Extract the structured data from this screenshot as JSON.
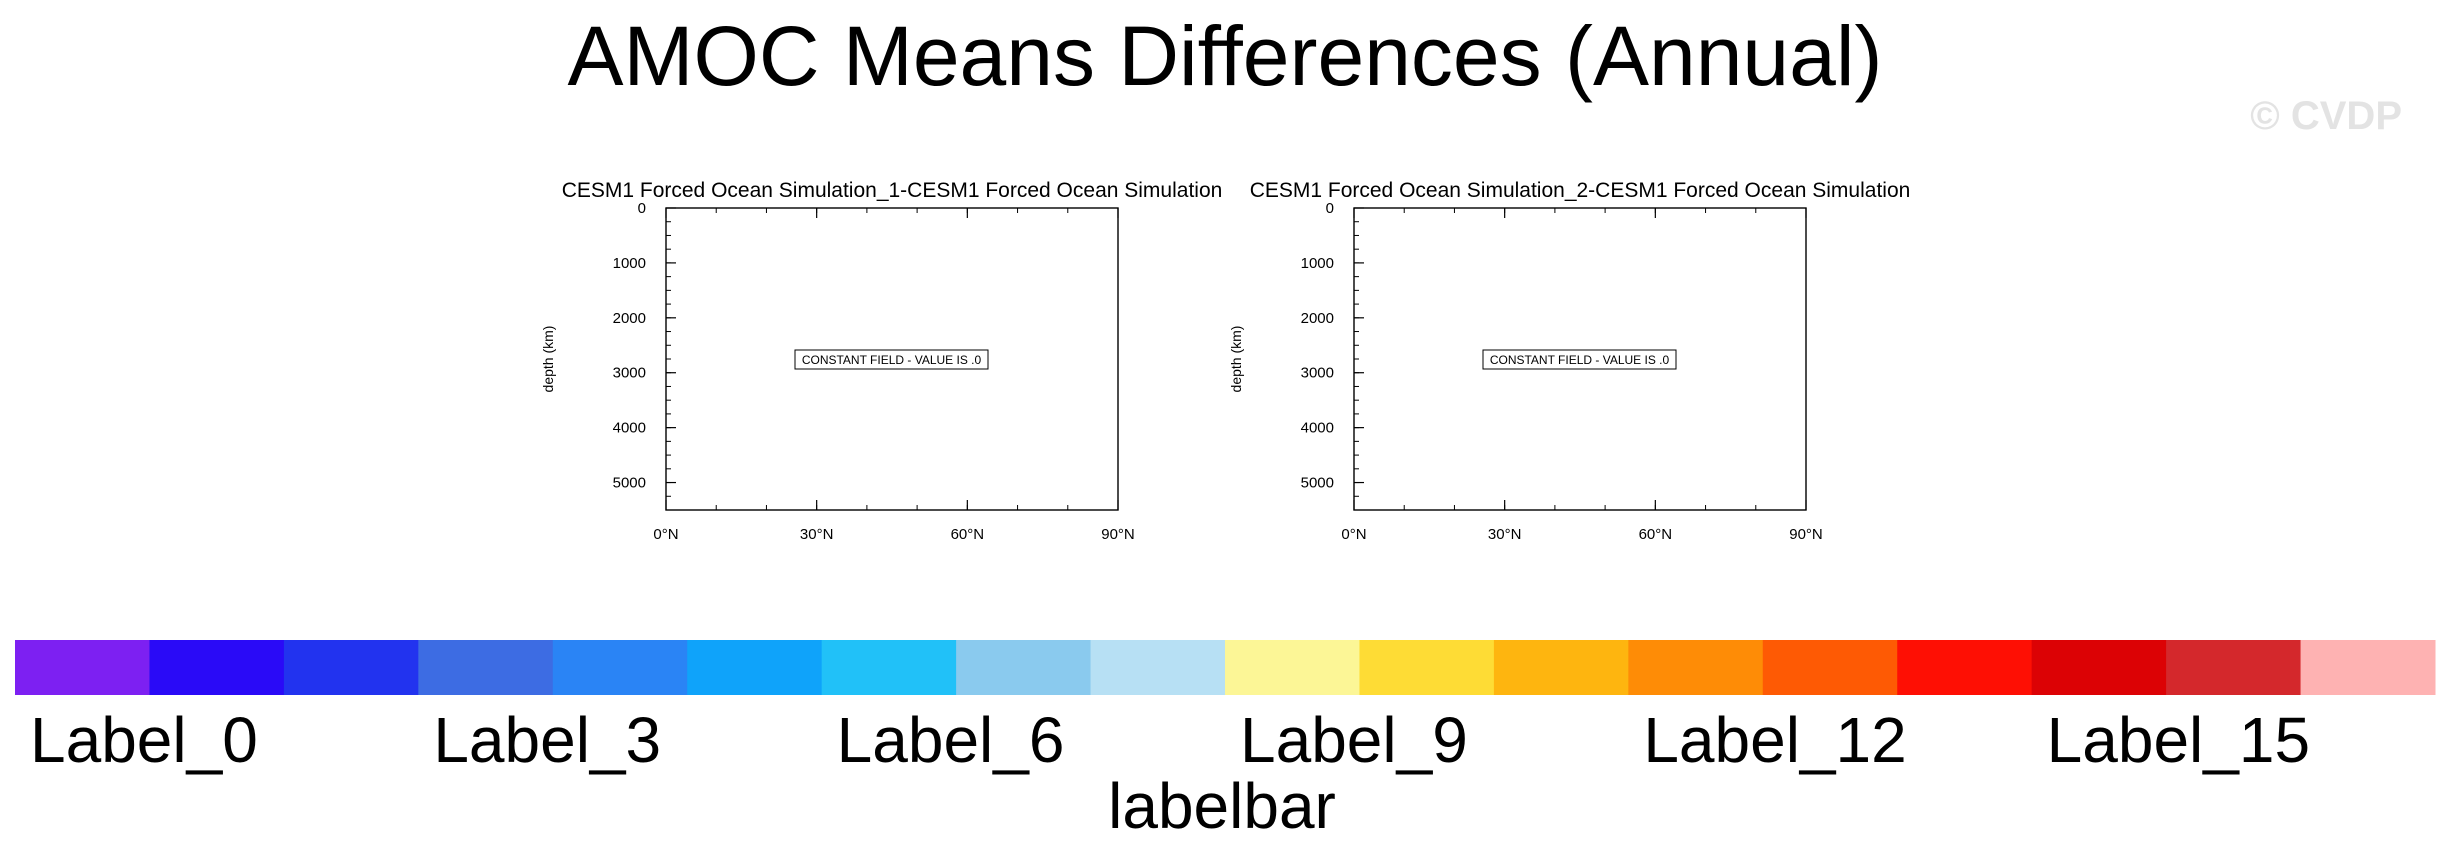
{
  "title": "AMOC Means Differences (Annual)",
  "watermark": "© CVDP",
  "chart_data": [
    {
      "type": "contour",
      "title": "CESM1 Forced Ocean Simulation_1-CESM1 Forced Ocean Simulation",
      "ylabel": "depth (km)",
      "xlabel": "",
      "x_ticks": [
        "0°N",
        "30°N",
        "60°N",
        "90°N"
      ],
      "x_values": [
        0,
        30,
        60,
        90
      ],
      "xlim": [
        0,
        90
      ],
      "y_ticks": [
        "0",
        "1000",
        "2000",
        "3000",
        "4000",
        "5000"
      ],
      "y_values": [
        0,
        1000,
        2000,
        3000,
        4000,
        5000
      ],
      "ylim": [
        5500,
        0
      ],
      "annotation": "CONSTANT FIELD - VALUE IS .0",
      "value": 0
    },
    {
      "type": "contour",
      "title": "CESM1 Forced Ocean Simulation_2-CESM1 Forced Ocean Simulation",
      "ylabel": "depth (km)",
      "xlabel": "",
      "x_ticks": [
        "0°N",
        "30°N",
        "60°N",
        "90°N"
      ],
      "x_values": [
        0,
        30,
        60,
        90
      ],
      "xlim": [
        0,
        90
      ],
      "y_ticks": [
        "0",
        "1000",
        "2000",
        "3000",
        "4000",
        "5000"
      ],
      "y_values": [
        0,
        1000,
        2000,
        3000,
        4000,
        5000
      ],
      "ylim": [
        5500,
        0
      ],
      "annotation": "CONSTANT FIELD - VALUE IS .0",
      "value": 0
    }
  ],
  "labelbar": {
    "title": "labelbar",
    "colors": [
      "#7d20f2",
      "#2a0af7",
      "#2233ef",
      "#3d6ce3",
      "#2a84f5",
      "#0fa3fa",
      "#21c1f8",
      "#8acaee",
      "#b7e0f4",
      "#fcf696",
      "#fedc35",
      "#feb50f",
      "#fe8c06",
      "#fe5a04",
      "#fe0f04",
      "#dc0205",
      "#d4282c",
      "#feb2b2"
    ],
    "labels": [
      {
        "index": 0,
        "text": "Label_0"
      },
      {
        "index": 3,
        "text": "Label_3"
      },
      {
        "index": 6,
        "text": "Label_6"
      },
      {
        "index": 9,
        "text": "Label_9"
      },
      {
        "index": 12,
        "text": "Label_12"
      },
      {
        "index": 15,
        "text": "Label_15"
      }
    ]
  }
}
